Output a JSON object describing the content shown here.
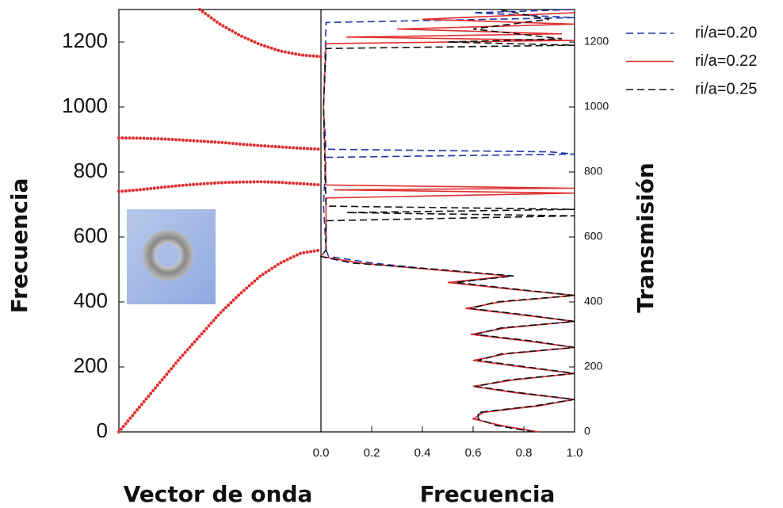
{
  "chart_data": [
    {
      "type": "scatter",
      "xlabel": "Vector de onda",
      "ylabel": "Frecuencia",
      "xlim": [
        0,
        1
      ],
      "ylim": [
        0,
        1300
      ],
      "yticks": [
        0,
        200,
        400,
        600,
        800,
        1000,
        1200
      ],
      "series": [
        {
          "color": "#e03030",
          "x": [
            0,
            0.1,
            0.2,
            0.3,
            0.4,
            0.5,
            0.6,
            0.7,
            0.8,
            0.9,
            1.0
          ],
          "values": [
            0,
            75,
            150,
            225,
            295,
            365,
            425,
            480,
            520,
            550,
            560
          ]
        },
        {
          "color": "#e03030",
          "x": [
            0,
            0.1,
            0.2,
            0.3,
            0.4,
            0.5,
            0.6,
            0.7,
            0.8,
            0.9,
            1.0
          ],
          "values": [
            740,
            745,
            752,
            758,
            763,
            767,
            769,
            770,
            768,
            764,
            760
          ]
        },
        {
          "color": "#e03030",
          "x": [
            0,
            0.1,
            0.2,
            0.3,
            0.4,
            0.5,
            0.6,
            0.7,
            0.8,
            0.9,
            1.0
          ],
          "values": [
            905,
            904,
            902,
            899,
            895,
            891,
            886,
            881,
            877,
            873,
            870
          ]
        },
        {
          "color": "#e03030",
          "x": [
            0.4,
            0.5,
            0.6,
            0.7,
            0.8,
            0.9,
            1.0
          ],
          "values": [
            1300,
            1255,
            1220,
            1192,
            1172,
            1160,
            1155
          ]
        }
      ]
    },
    {
      "type": "line",
      "xlabel": "Frecuencia",
      "ylabel": "Transmisión",
      "legend": "right",
      "xlim": [
        0,
        1
      ],
      "xticks": [
        {
          "value": 0,
          "label": "0.0"
        },
        0.2,
        0.4,
        0.6,
        0.8,
        {
          "value": 1,
          "label": "1.0"
        }
      ],
      "ylim": [
        0,
        1300
      ],
      "yticks": [
        0,
        200,
        400,
        600,
        800,
        1000,
        1200
      ],
      "series": [
        {
          "name": "ri/a=0.20",
          "color": "#2233aa",
          "dash": "dashed",
          "x": [
            0,
            20,
            40,
            60,
            80,
            100,
            120,
            140,
            160,
            180,
            200,
            220,
            240,
            260,
            280,
            300,
            320,
            340,
            360,
            380,
            400,
            420,
            440,
            460,
            480,
            500,
            520,
            540,
            560,
            700,
            845,
            855,
            862,
            870,
            1000,
            1260,
            1275,
            1290,
            1300
          ],
          "values": [
            0.85,
            0.7,
            0.61,
            0.63,
            0.85,
            1.0,
            0.78,
            0.6,
            0.75,
            1.0,
            0.8,
            0.61,
            0.72,
            1.0,
            0.82,
            0.6,
            0.72,
            1.0,
            0.8,
            0.58,
            0.7,
            1.0,
            0.75,
            0.52,
            0.75,
            0.45,
            0.2,
            0.03,
            0.02,
            0.01,
            0.02,
            1.0,
            0.9,
            0.02,
            0.01,
            0.02,
            1.0,
            0.6,
            1.0
          ]
        },
        {
          "name": "ri/a=0.22",
          "color": "#e03030",
          "dash": "solid",
          "x": [
            0,
            20,
            40,
            60,
            80,
            100,
            120,
            140,
            160,
            180,
            200,
            220,
            240,
            260,
            280,
            300,
            320,
            340,
            360,
            380,
            400,
            420,
            440,
            460,
            480,
            500,
            520,
            540,
            560,
            720,
            735,
            745,
            750,
            760,
            1000,
            1195,
            1205,
            1215,
            1225,
            1240,
            1255,
            1270,
            1290
          ],
          "values": [
            0.86,
            0.71,
            0.6,
            0.64,
            0.86,
            1.0,
            0.77,
            0.6,
            0.76,
            1.0,
            0.79,
            0.6,
            0.73,
            1.0,
            0.81,
            0.59,
            0.73,
            1.0,
            0.79,
            0.57,
            0.71,
            1.0,
            0.74,
            0.5,
            0.74,
            0.43,
            0.15,
            0.0,
            0.02,
            0.02,
            1.0,
            0.05,
            1.0,
            0.02,
            0.01,
            0.02,
            1.0,
            0.1,
            0.95,
            0.3,
            1.0,
            0.4,
            1.0
          ]
        },
        {
          "name": "ri/a=0.25",
          "color": "#111111",
          "dash": "dashed",
          "x": [
            0,
            20,
            40,
            60,
            80,
            100,
            120,
            140,
            160,
            180,
            200,
            220,
            240,
            260,
            280,
            300,
            320,
            340,
            360,
            380,
            400,
            420,
            440,
            460,
            480,
            500,
            520,
            540,
            560,
            650,
            665,
            675,
            685,
            695,
            1000,
            1180,
            1190,
            1200,
            1210,
            1240,
            1270,
            1300
          ],
          "values": [
            0.84,
            0.69,
            0.62,
            0.62,
            0.84,
            1.0,
            0.79,
            0.61,
            0.74,
            1.0,
            0.81,
            0.62,
            0.71,
            1.0,
            0.83,
            0.61,
            0.71,
            1.0,
            0.81,
            0.59,
            0.69,
            1.0,
            0.76,
            0.53,
            0.76,
            0.46,
            0.12,
            0.0,
            0.02,
            0.02,
            1.0,
            0.1,
            1.0,
            0.02,
            0.01,
            0.02,
            1.0,
            0.5,
            0.95,
            0.6,
            0.9,
            0.7
          ]
        }
      ]
    }
  ]
}
